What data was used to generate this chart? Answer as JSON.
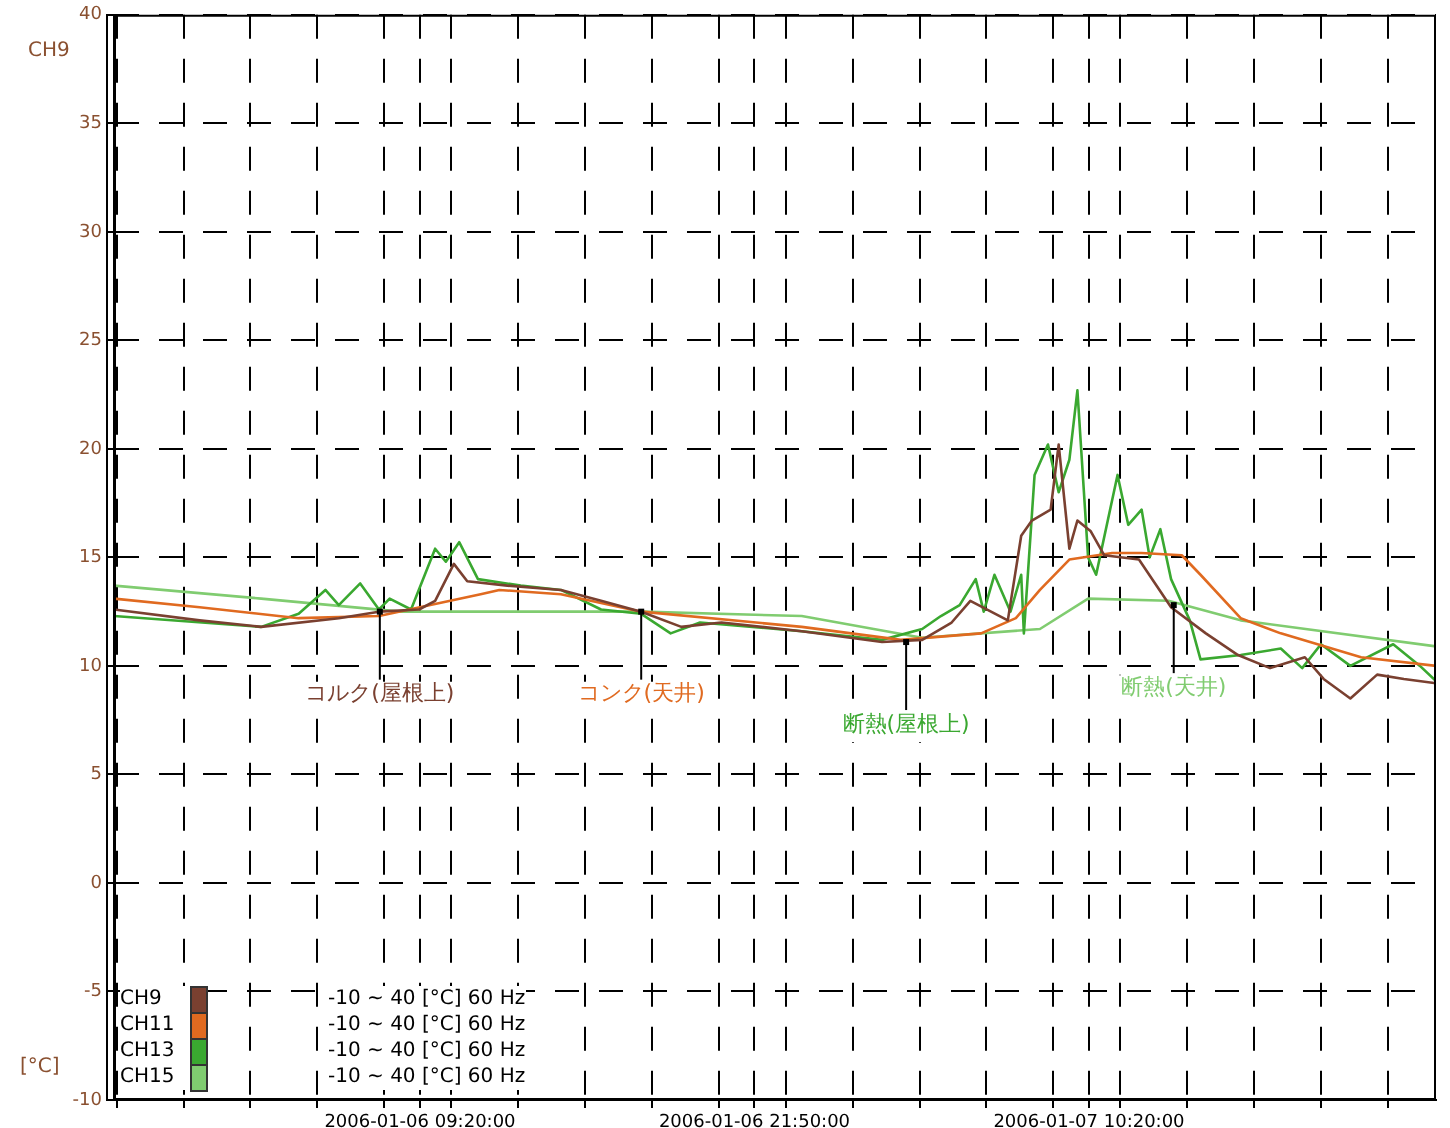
{
  "chart_data": {
    "type": "line",
    "ylabel": "[°C]",
    "annotations": [
      {
        "text": "コルク(屋根上)",
        "x": "2006-01-06T07:50",
        "y": 12.5
      },
      {
        "text": "コンク(天井)",
        "x": "2006-01-06T17:36",
        "y": 12.5
      },
      {
        "text": "断熱(屋根上)",
        "x": "2006-01-07T03:30",
        "y": 11.1
      },
      {
        "text": "断熱(天井)",
        "x": "2006-01-07T13:30",
        "y": 12.8
      },
      "CH9",
      "-10 ~ 40 [°C] 60 Hz",
      "-10 ~ 40 [°C] 60 Hz",
      "-10 ~ 40 [°C] 60 Hz",
      "-10 ~ 40 [°C] 60 Hz"
    ],
    "series": [
      {
        "name": "CH9",
        "color": "#7a4030",
        "x": [
          "2006-01-05T21:54",
          "2006-01-06T01:06",
          "2006-01-06T03:24",
          "2006-01-06T06:18",
          "2006-01-06T07:48",
          "2006-01-06T09:18",
          "2006-01-06T09:54",
          "2006-01-06T10:36",
          "2006-01-06T11:06",
          "2006-01-06T12:36",
          "2006-01-06T14:36",
          "2006-01-06T16:06",
          "2006-01-06T17:36",
          "2006-01-06T19:06",
          "2006-01-06T20:36",
          "2006-01-06T23:36",
          "2006-01-07T02:36",
          "2006-01-07T04:06",
          "2006-01-07T05:12",
          "2006-01-07T05:54",
          "2006-01-07T07:18",
          "2006-01-07T07:48",
          "2006-01-07T08:12",
          "2006-01-07T08:54",
          "2006-01-07T09:12",
          "2006-01-07T09:36",
          "2006-01-07T09:54",
          "2006-01-07T10:24",
          "2006-01-07T10:54",
          "2006-01-07T12:12",
          "2006-01-07T13:24",
          "2006-01-07T14:42",
          "2006-01-07T15:54",
          "2006-01-07T17:06",
          "2006-01-07T18:24",
          "2006-01-07T19:06",
          "2006-01-07T20:06",
          "2006-01-07T21:06",
          "2006-01-07T22:06",
          "2006-01-07T23:18"
        ],
        "values": [
          12.6,
          12.1,
          11.8,
          12.2,
          12.5,
          12.6,
          13.0,
          14.7,
          13.9,
          13.7,
          13.5,
          13.0,
          12.5,
          11.8,
          12.0,
          11.6,
          11.1,
          11.2,
          12.0,
          13.0,
          12.1,
          16.0,
          16.7,
          17.2,
          20.2,
          15.4,
          16.7,
          16.2,
          15.1,
          14.9,
          12.7,
          11.5,
          10.5,
          9.9,
          10.4,
          9.4,
          8.5,
          9.6,
          9.4,
          9.2
        ]
      },
      {
        "name": "CH11",
        "color": "#e06a20",
        "x": [
          "2006-01-05T21:54",
          "2006-01-06T01:06",
          "2006-01-06T04:48",
          "2006-01-06T07:48",
          "2006-01-06T11:36",
          "2006-01-06T12:18",
          "2006-01-06T14:36",
          "2006-01-06T17:36",
          "2006-01-06T23:36",
          "2006-01-07T03:18",
          "2006-01-07T06:18",
          "2006-01-07T07:36",
          "2006-01-07T08:30",
          "2006-01-07T09:36",
          "2006-01-07T11:12",
          "2006-01-07T12:18",
          "2006-01-07T13:48",
          "2006-01-07T14:30",
          "2006-01-07T16:00",
          "2006-01-07T17:30",
          "2006-01-07T20:30",
          "2006-01-07T23:18"
        ],
        "values": [
          13.1,
          12.7,
          12.2,
          12.3,
          13.3,
          13.5,
          13.3,
          12.5,
          11.8,
          11.2,
          11.5,
          12.2,
          13.5,
          14.9,
          15.2,
          15.2,
          15.1,
          14.2,
          12.2,
          11.5,
          10.4,
          10.0
        ]
      },
      {
        "name": "CH13",
        "color": "#3aa830",
        "x": [
          "2006-01-05T21:54",
          "2006-01-06T03:24",
          "2006-01-06T04:48",
          "2006-01-06T05:48",
          "2006-01-06T06:18",
          "2006-01-06T07:06",
          "2006-01-06T07:48",
          "2006-01-06T08:12",
          "2006-01-06T09:00",
          "2006-01-06T09:54",
          "2006-01-06T10:18",
          "2006-01-06T10:48",
          "2006-01-06T11:30",
          "2006-01-06T13:06",
          "2006-01-06T14:36",
          "2006-01-06T16:06",
          "2006-01-06T17:36",
          "2006-01-06T18:42",
          "2006-01-06T19:48",
          "2006-01-06T23:36",
          "2006-01-07T02:36",
          "2006-01-07T04:06",
          "2006-01-07T04:48",
          "2006-01-07T05:30",
          "2006-01-07T06:06",
          "2006-01-07T06:24",
          "2006-01-07T06:48",
          "2006-01-07T07:24",
          "2006-01-07T07:48",
          "2006-01-07T07:54",
          "2006-01-07T08:18",
          "2006-01-07T08:48",
          "2006-01-07T09:12",
          "2006-01-07T09:36",
          "2006-01-07T09:54",
          "2006-01-07T10:18",
          "2006-01-07T10:36",
          "2006-01-07T11:24",
          "2006-01-07T11:48",
          "2006-01-07T12:18",
          "2006-01-07T12:36",
          "2006-01-07T13:00",
          "2006-01-07T13:24",
          "2006-01-07T14:06",
          "2006-01-07T14:30",
          "2006-01-07T16:00",
          "2006-01-07T17:30",
          "2006-01-07T18:18",
          "2006-01-07T19:00",
          "2006-01-07T20:06",
          "2006-01-07T21:42",
          "2006-01-07T22:42",
          "2006-01-07T23:18"
        ],
        "values": [
          12.3,
          11.8,
          12.4,
          13.5,
          12.8,
          13.8,
          12.6,
          13.1,
          12.6,
          15.4,
          14.8,
          15.7,
          14.0,
          13.7,
          13.5,
          12.6,
          12.4,
          11.5,
          12.0,
          11.6,
          11.2,
          11.7,
          12.3,
          12.8,
          14.0,
          12.5,
          14.2,
          12.5,
          14.2,
          11.5,
          18.8,
          20.2,
          18.0,
          19.5,
          22.7,
          15.0,
          14.2,
          18.8,
          16.5,
          17.2,
          15.0,
          16.3,
          14.0,
          12.1,
          10.3,
          10.5,
          10.8,
          9.9,
          11.0,
          10.0,
          11.0,
          10.0,
          9.3
        ]
      },
      {
        "name": "CH15",
        "color": "#80cc70",
        "x": [
          "2006-01-05T21:54",
          "2006-01-06T03:24",
          "2006-01-06T08:36",
          "2006-01-06T17:36",
          "2006-01-06T23:36",
          "2006-01-07T04:06",
          "2006-01-07T08:30",
          "2006-01-07T10:18",
          "2006-01-07T13:18",
          "2006-01-07T16:00",
          "2006-01-07T23:18"
        ],
        "values": [
          13.7,
          13.1,
          12.5,
          12.5,
          12.3,
          11.3,
          11.7,
          13.1,
          13.0,
          12.1,
          10.9
        ]
      }
    ],
    "xlim": [
      "2006-01-05T21:54",
      "2006-01-07T23:18"
    ],
    "xticks": [
      {
        "value": "2006-01-05T22:00",
        "label": null
      },
      {
        "value": "2006-01-06T00:30",
        "label": null
      },
      {
        "value": "2006-01-06T03:00",
        "label": null
      },
      {
        "value": "2006-01-06T05:30",
        "label": null
      },
      {
        "value": "2006-01-06T08:00",
        "label": null
      },
      {
        "value": "2006-01-06T09:20",
        "label": "2006-01-06 09:20:00"
      },
      {
        "value": "2006-01-06T10:30",
        "label": null
      },
      {
        "value": "2006-01-06T13:00",
        "label": null
      },
      {
        "value": "2006-01-06T15:30",
        "label": null
      },
      {
        "value": "2006-01-06T18:00",
        "label": null
      },
      {
        "value": "2006-01-06T20:30",
        "label": null
      },
      {
        "value": "2006-01-06T21:50",
        "label": "2006-01-06 21:50:00"
      },
      {
        "value": "2006-01-06T23:00",
        "label": null
      },
      {
        "value": "2006-01-07T01:30",
        "label": null
      },
      {
        "value": "2006-01-07T04:00",
        "label": null
      },
      {
        "value": "2006-01-07T06:30",
        "label": null
      },
      {
        "value": "2006-01-07T09:00",
        "label": null
      },
      {
        "value": "2006-01-07T10:20",
        "label": "2006-01-07 10:20:00"
      },
      {
        "value": "2006-01-07T11:30",
        "label": null
      },
      {
        "value": "2006-01-07T14:00",
        "label": null
      },
      {
        "value": "2006-01-07T16:30",
        "label": null
      },
      {
        "value": "2006-01-07T19:00",
        "label": null
      },
      {
        "value": "2006-01-07T21:30",
        "label": null
      }
    ],
    "ylim": [
      -10,
      40
    ],
    "yticks": [
      -10,
      -5,
      0,
      5,
      10,
      15,
      20,
      25,
      30,
      35,
      40
    ],
    "grid": true,
    "legend": "bottom left"
  }
}
